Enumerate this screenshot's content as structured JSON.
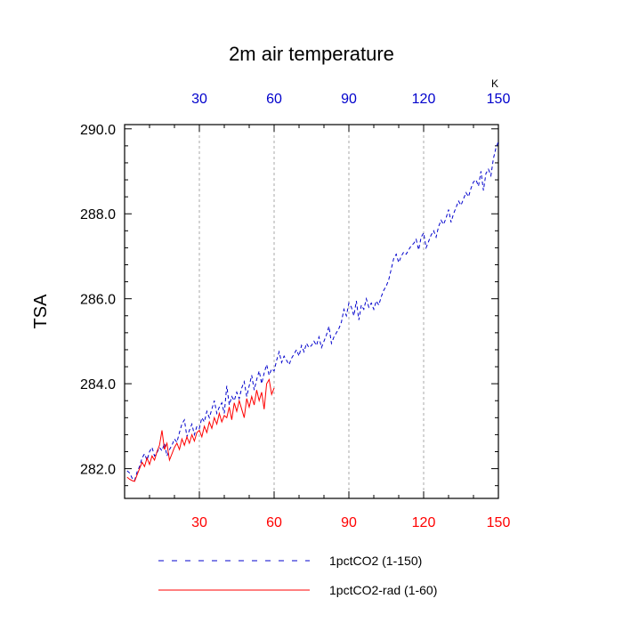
{
  "chart_data": {
    "type": "line",
    "title": "2m air temperature",
    "ylabel": "TSA",
    "units": "K",
    "xlim": [
      0,
      150
    ],
    "ylim": [
      281.3,
      290.1
    ],
    "grid": "vertical dashed",
    "y_ticks": [
      "282.0",
      "284.0",
      "286.0",
      "288.0",
      "290.0"
    ],
    "y_tick_values": [
      282,
      284,
      286,
      288,
      290
    ],
    "x_ticks": [
      "30",
      "60",
      "90",
      "120",
      "150"
    ],
    "x_tick_values": [
      30,
      60,
      90,
      120,
      150
    ],
    "colors": {
      "bottom_axis": "#ff0000",
      "top_axis": "#0000cc"
    },
    "legend": {
      "placement": "bottom",
      "entries": [
        "1pctCO2 (1-150)",
        "1pctCO2-rad (1-60)"
      ]
    },
    "series": [
      {
        "name": "1pctCO2 (1-150)",
        "color": "#0000cc",
        "dash": "dashed",
        "x": [
          1,
          2,
          3,
          4,
          5,
          6,
          7,
          8,
          9,
          10,
          11,
          12,
          13,
          14,
          15,
          16,
          17,
          18,
          19,
          20,
          21,
          22,
          23,
          24,
          25,
          26,
          27,
          28,
          29,
          30,
          31,
          32,
          33,
          34,
          35,
          36,
          37,
          38,
          39,
          40,
          41,
          42,
          43,
          44,
          45,
          46,
          47,
          48,
          49,
          50,
          51,
          52,
          53,
          54,
          55,
          56,
          57,
          58,
          59,
          60,
          61,
          62,
          63,
          64,
          65,
          66,
          67,
          68,
          69,
          70,
          71,
          72,
          73,
          74,
          75,
          76,
          77,
          78,
          79,
          80,
          81,
          82,
          83,
          84,
          85,
          86,
          87,
          88,
          89,
          90,
          91,
          92,
          93,
          94,
          95,
          96,
          97,
          98,
          99,
          100,
          101,
          102,
          103,
          104,
          105,
          106,
          107,
          108,
          109,
          110,
          111,
          112,
          113,
          114,
          115,
          116,
          117,
          118,
          119,
          120,
          121,
          122,
          123,
          124,
          125,
          126,
          127,
          128,
          129,
          130,
          131,
          132,
          133,
          134,
          135,
          136,
          137,
          138,
          139,
          140,
          141,
          142,
          143,
          144,
          145,
          146,
          147,
          148,
          149,
          150
        ],
        "values": [
          281.95,
          281.9,
          281.78,
          281.72,
          281.92,
          282.05,
          282.25,
          282.35,
          282.2,
          282.4,
          282.5,
          282.3,
          282.38,
          282.5,
          282.42,
          282.6,
          282.3,
          282.45,
          282.55,
          282.7,
          282.62,
          282.85,
          283.05,
          283.15,
          282.75,
          282.9,
          283.05,
          282.8,
          283.0,
          282.95,
          283.2,
          283.1,
          283.35,
          283.2,
          283.4,
          283.6,
          283.3,
          283.45,
          283.55,
          283.3,
          283.95,
          283.5,
          283.7,
          283.6,
          283.8,
          283.65,
          283.9,
          284.05,
          283.7,
          283.95,
          284.2,
          283.85,
          284.1,
          284.3,
          284.0,
          284.25,
          284.45,
          284.2,
          284.35,
          284.3,
          284.55,
          284.75,
          284.5,
          284.65,
          284.55,
          284.45,
          284.6,
          284.7,
          284.8,
          284.65,
          284.9,
          284.75,
          284.95,
          284.85,
          284.9,
          285.0,
          284.9,
          285.1,
          284.85,
          285.0,
          285.15,
          285.35,
          284.95,
          285.1,
          285.2,
          285.3,
          285.45,
          285.75,
          285.6,
          285.9,
          285.8,
          285.6,
          285.95,
          285.5,
          285.85,
          285.75,
          286.0,
          285.8,
          285.9,
          285.75,
          285.95,
          285.85,
          286.05,
          286.2,
          286.3,
          286.45,
          286.7,
          286.95,
          287.05,
          286.85,
          287.0,
          287.1,
          287.05,
          287.15,
          287.25,
          287.3,
          287.4,
          287.15,
          287.45,
          287.55,
          287.2,
          287.35,
          287.5,
          287.6,
          287.45,
          287.7,
          287.85,
          287.75,
          287.9,
          288.1,
          287.8,
          288.0,
          288.15,
          288.3,
          288.2,
          288.35,
          288.5,
          288.4,
          288.6,
          288.75,
          288.8,
          288.65,
          289.0,
          288.55,
          288.95,
          289.05,
          288.9,
          289.3,
          289.55,
          289.7
        ],
        "draw_x": [
          1,
          2,
          3,
          4,
          5,
          6,
          7,
          8,
          9,
          10,
          11,
          12,
          13,
          14,
          15,
          16,
          17,
          18,
          19,
          20,
          21,
          22,
          23,
          24,
          25,
          26,
          27,
          28,
          29,
          30,
          31,
          32,
          33,
          34,
          35,
          36,
          37,
          38,
          39,
          40,
          41,
          42,
          43,
          44,
          45,
          46,
          47,
          48,
          49,
          50,
          51,
          52,
          53,
          54,
          55,
          56,
          57,
          58,
          59,
          60,
          61,
          62,
          63,
          64,
          65,
          66,
          67,
          68,
          69,
          70,
          71,
          72,
          73,
          74,
          75,
          76,
          77,
          78,
          79,
          80,
          81,
          82,
          83,
          84,
          85,
          86,
          87,
          88,
          89,
          90,
          91,
          92,
          93,
          94,
          95,
          96,
          97,
          98,
          99,
          100,
          101,
          102,
          103,
          104,
          105,
          106,
          107,
          108,
          109,
          110,
          111,
          112,
          113,
          114,
          115,
          116,
          117,
          118,
          119,
          120,
          121,
          122,
          123,
          124,
          125,
          126,
          127,
          128,
          129,
          130,
          131,
          132,
          133,
          134,
          135,
          136,
          137,
          138,
          139,
          140,
          141,
          142,
          143,
          144,
          145,
          146,
          147,
          148,
          149,
          150
        ]
      },
      {
        "name": "1pctCO2-rad (1-60)",
        "color": "#ff0000",
        "dash": "solid",
        "x": [
          1,
          2,
          3,
          4,
          5,
          6,
          7,
          8,
          9,
          10,
          11,
          12,
          13,
          14,
          15,
          16,
          17,
          18,
          19,
          20,
          21,
          22,
          23,
          24,
          25,
          26,
          27,
          28,
          29,
          30,
          31,
          32,
          33,
          34,
          35,
          36,
          37,
          38,
          39,
          40,
          41,
          42,
          43,
          44,
          45,
          46,
          47,
          48,
          49,
          50,
          51,
          52,
          53,
          54,
          55,
          56,
          57,
          58,
          59,
          60
        ],
        "values": [
          281.8,
          281.75,
          281.72,
          281.7,
          281.85,
          282.0,
          282.15,
          282.05,
          282.25,
          282.1,
          282.3,
          282.2,
          282.4,
          282.55,
          282.9,
          282.45,
          282.6,
          282.2,
          282.35,
          282.5,
          282.6,
          282.45,
          282.7,
          282.55,
          282.75,
          282.6,
          282.8,
          282.65,
          282.85,
          282.9,
          282.75,
          283.0,
          282.85,
          283.1,
          282.95,
          283.2,
          283.05,
          283.3,
          283.1,
          283.25,
          283.2,
          283.45,
          283.15,
          283.55,
          283.35,
          283.6,
          283.4,
          283.2,
          283.65,
          283.45,
          283.7,
          283.5,
          283.85,
          283.6,
          283.8,
          283.4,
          284.0,
          284.1,
          283.75,
          283.9
        ]
      }
    ]
  }
}
